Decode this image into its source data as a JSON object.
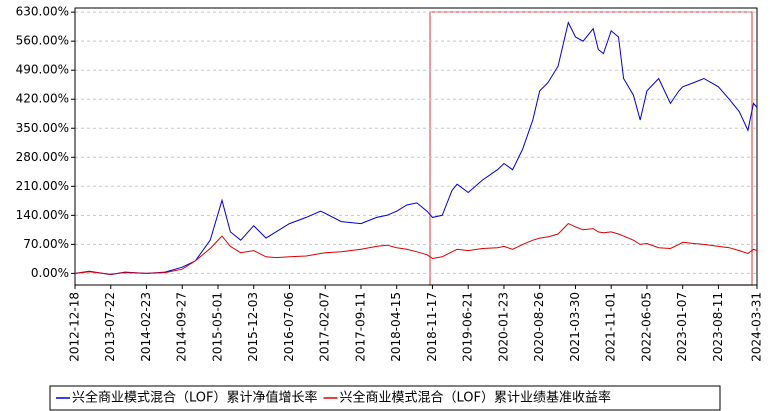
{
  "chart_data": {
    "type": "line",
    "x": [
      "2012-12-18",
      "2013-03-15",
      "2013-07-22",
      "2013-10-15",
      "2014-02-23",
      "2014-06-15",
      "2014-09-27",
      "2014-12-15",
      "2015-03-15",
      "2015-05-25",
      "2015-07-15",
      "2015-09-15",
      "2015-12-03",
      "2016-02-15",
      "2016-04-15",
      "2016-07-06",
      "2016-10-15",
      "2017-01-10",
      "2017-02-07",
      "2017-05-15",
      "2017-09-11",
      "2017-12-15",
      "2018-02-15",
      "2018-04-15",
      "2018-06-15",
      "2018-08-15",
      "2018-10-15",
      "2018-11-17",
      "2019-01-15",
      "2019-03-15",
      "2019-04-15",
      "2019-06-21",
      "2019-09-15",
      "2019-12-15",
      "2020-01-23",
      "2020-03-15",
      "2020-05-15",
      "2020-07-15",
      "2020-08-26",
      "2020-10-15",
      "2020-12-15",
      "2021-02-15",
      "2021-03-30",
      "2021-05-15",
      "2021-07-15",
      "2021-08-15",
      "2021-09-15",
      "2021-11-01",
      "2021-12-15",
      "2022-01-15",
      "2022-03-15",
      "2022-04-25",
      "2022-06-05",
      "2022-08-15",
      "2022-10-25",
      "2022-12-15",
      "2023-01-07",
      "2023-03-15",
      "2023-05-15",
      "2023-08-11",
      "2023-10-15",
      "2023-12-15",
      "2024-02-05",
      "2024-03-10",
      "2024-03-31"
    ],
    "series": [
      {
        "name": "兴全商业模式混合（LOF）累计净值增长率",
        "color": "#0000cc",
        "values": [
          0,
          5,
          -3,
          3,
          0,
          3,
          15,
          30,
          80,
          176,
          100,
          80,
          115,
          85,
          100,
          120,
          135,
          150,
          145,
          125,
          120,
          135,
          140,
          150,
          165,
          170,
          150,
          135,
          140,
          200,
          215,
          195,
          225,
          250,
          265,
          250,
          300,
          370,
          440,
          460,
          500,
          605,
          570,
          560,
          590,
          540,
          530,
          585,
          570,
          470,
          430,
          370,
          440,
          470,
          410,
          440,
          450,
          460,
          470,
          450,
          420,
          390,
          345,
          410,
          400
        ]
      },
      {
        "name": "兴全商业模式混合（LOF）累计业绩基准收益率",
        "color": "#dd0000",
        "values": [
          0,
          4,
          -2,
          2,
          0,
          2,
          10,
          30,
          60,
          90,
          65,
          50,
          55,
          40,
          38,
          40,
          42,
          48,
          50,
          52,
          58,
          65,
          68,
          62,
          58,
          52,
          45,
          36,
          40,
          52,
          58,
          55,
          60,
          62,
          65,
          58,
          70,
          80,
          85,
          88,
          95,
          120,
          112,
          105,
          108,
          100,
          98,
          100,
          95,
          90,
          80,
          70,
          72,
          62,
          60,
          70,
          75,
          72,
          70,
          65,
          62,
          55,
          48,
          58,
          55
        ]
      }
    ],
    "xlim": [
      "2012-12-18",
      "2024-03-31"
    ],
    "xticks": [
      "2012-12-18",
      "2013-07-22",
      "2014-02-23",
      "2014-09-27",
      "2015-05-01",
      "2015-12-03",
      "2016-07-06",
      "2017-02-07",
      "2017-09-11",
      "2018-04-15",
      "2018-11-17",
      "2019-06-21",
      "2020-01-23",
      "2020-08-26",
      "2021-03-30",
      "2021-11-01",
      "2022-06-05",
      "2023-01-07",
      "2023-08-11",
      "2024-03-31"
    ],
    "ylim": [
      -28,
      640
    ],
    "yticks": [
      {
        "value": 0,
        "label": "0.00%"
      },
      {
        "value": 70,
        "label": "70.00%"
      },
      {
        "value": 140,
        "label": "140.00%"
      },
      {
        "value": 210,
        "label": "210.00%"
      },
      {
        "value": 280,
        "label": "280.00%"
      },
      {
        "value": 350,
        "label": "350.00%"
      },
      {
        "value": 420,
        "label": "420.00%"
      },
      {
        "value": 490,
        "label": "490.00%"
      },
      {
        "value": 560,
        "label": "560.00%"
      },
      {
        "value": 630,
        "label": "630.00%"
      }
    ],
    "grid": true
  }
}
